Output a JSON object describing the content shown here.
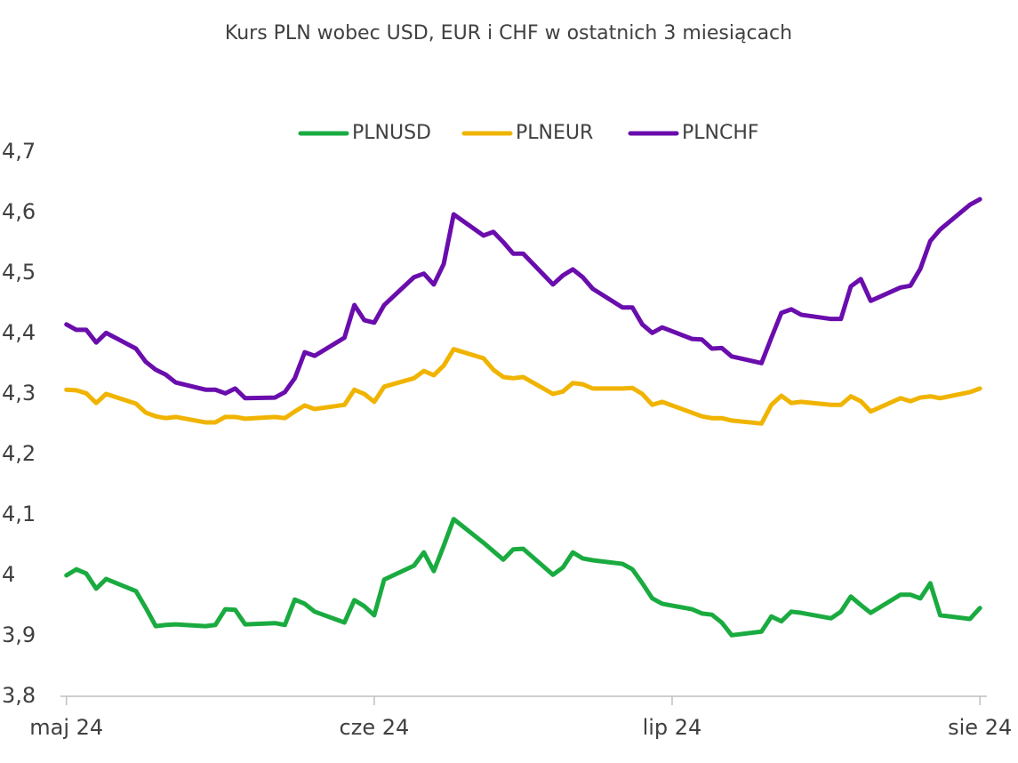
{
  "chart_data": {
    "type": "line",
    "title": "Kurs PLN wobec USD, EUR i CHF w ostatnich 3 miesiącach",
    "x": [
      0,
      1,
      2,
      3,
      4,
      7,
      8,
      9,
      10,
      11,
      14,
      15,
      16,
      17,
      18,
      21,
      22,
      23,
      24,
      25,
      28,
      29,
      30,
      31,
      32,
      35,
      36,
      37,
      38,
      39,
      42,
      43,
      44,
      45,
      46,
      49,
      50,
      51,
      52,
      53,
      56,
      57,
      58,
      59,
      60,
      63,
      64,
      65,
      66,
      67,
      70,
      71,
      72,
      73,
      74,
      77,
      78,
      79,
      80,
      81,
      84,
      85,
      86,
      87,
      88,
      91,
      92
    ],
    "xlim": [
      -0.6,
      92.7
    ],
    "xticks": [
      {
        "value": 0,
        "label": "maj 24"
      },
      {
        "value": 31,
        "label": "cze 24"
      },
      {
        "value": 61,
        "label": "lip 24"
      },
      {
        "value": 92,
        "label": "sie 24"
      }
    ],
    "ylim": [
      3.8,
      4.7
    ],
    "yticks": [
      {
        "value": 3.8,
        "label": "3,8"
      },
      {
        "value": 3.9,
        "label": "3,9"
      },
      4,
      {
        "value": 4.1,
        "label": "4,1"
      },
      {
        "value": 4.2,
        "label": "4,2"
      },
      {
        "value": 4.3,
        "label": "4,3"
      },
      {
        "value": 4.4,
        "label": "4,4"
      },
      {
        "value": 4.5,
        "label": "4,5"
      },
      {
        "value": 4.6,
        "label": "4,6"
      },
      {
        "value": 4.7,
        "label": "4,7"
      }
    ],
    "legend": "top",
    "series": [
      {
        "name": "PLNUSD",
        "color": "#1aab40",
        "values": [
          4.0,
          4.01,
          4.003,
          3.978,
          3.994,
          3.974,
          3.946,
          3.916,
          3.918,
          3.919,
          3.916,
          3.918,
          3.944,
          3.943,
          3.919,
          3.921,
          3.918,
          3.96,
          3.953,
          3.94,
          3.922,
          3.959,
          3.949,
          3.934,
          3.993,
          4.016,
          4.038,
          4.007,
          4.049,
          4.093,
          4.054,
          4.04,
          4.026,
          4.043,
          4.044,
          4.001,
          4.013,
          4.038,
          4.028,
          4.025,
          4.019,
          4.01,
          3.987,
          3.962,
          3.953,
          3.944,
          3.937,
          3.935,
          3.922,
          3.901,
          3.907,
          3.932,
          3.924,
          3.94,
          3.938,
          3.929,
          3.94,
          3.965,
          3.951,
          3.938,
          3.968,
          3.968,
          3.962,
          3.987,
          3.934,
          3.928,
          3.946
        ]
      },
      {
        "name": "PLNEUR",
        "color": "#f0b400",
        "values": [
          4.307,
          4.306,
          4.301,
          4.285,
          4.3,
          4.284,
          4.269,
          4.263,
          4.26,
          4.262,
          4.253,
          4.253,
          4.262,
          4.262,
          4.259,
          4.262,
          4.26,
          4.271,
          4.281,
          4.275,
          4.282,
          4.307,
          4.3,
          4.287,
          4.312,
          4.326,
          4.338,
          4.331,
          4.347,
          4.374,
          4.359,
          4.34,
          4.328,
          4.326,
          4.328,
          4.3,
          4.304,
          4.318,
          4.316,
          4.309,
          4.309,
          4.31,
          4.3,
          4.282,
          4.287,
          4.269,
          4.263,
          4.26,
          4.26,
          4.256,
          4.251,
          4.282,
          4.297,
          4.285,
          4.287,
          4.282,
          4.282,
          4.296,
          4.288,
          4.271,
          4.293,
          4.288,
          4.294,
          4.296,
          4.293,
          4.303,
          4.309
        ]
      },
      {
        "name": "PLNCHF",
        "color": "#6a0dad",
        "values": [
          4.415,
          4.406,
          4.406,
          4.385,
          4.401,
          4.375,
          4.353,
          4.34,
          4.332,
          4.319,
          4.307,
          4.307,
          4.301,
          4.309,
          4.293,
          4.294,
          4.303,
          4.326,
          4.369,
          4.363,
          4.393,
          4.447,
          4.422,
          4.418,
          4.447,
          4.493,
          4.499,
          4.481,
          4.515,
          4.597,
          4.562,
          4.568,
          4.551,
          4.532,
          4.532,
          4.481,
          4.496,
          4.506,
          4.493,
          4.474,
          4.443,
          4.443,
          4.415,
          4.401,
          4.41,
          4.391,
          4.39,
          4.375,
          4.376,
          4.362,
          4.351,
          4.393,
          4.434,
          4.44,
          4.431,
          4.424,
          4.424,
          4.478,
          4.49,
          4.454,
          4.476,
          4.479,
          4.507,
          4.553,
          4.572,
          4.613,
          4.622
        ]
      }
    ]
  }
}
